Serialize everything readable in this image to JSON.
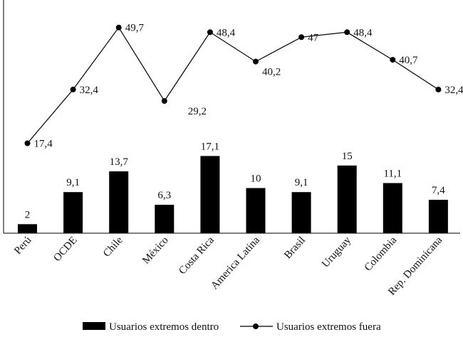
{
  "chart_data": {
    "type": "bar+line",
    "title": "",
    "xlabel": "",
    "ylabel": "",
    "categories": [
      "Perú",
      "OCDE",
      "Chile",
      "México",
      "Costa Rica",
      "America Latina",
      "Brasil",
      "Uruguay",
      "Colombia",
      "Rep. Dominicana"
    ],
    "series": [
      {
        "name": "Usuarios extremos dentro",
        "kind": "bar",
        "values": [
          2,
          9.1,
          13.7,
          6.3,
          17.1,
          10,
          9.1,
          15,
          11.1,
          7.4
        ],
        "labels": [
          "2",
          "9,1",
          "13,7",
          "6,3",
          "17,1",
          "10",
          "9,1",
          "15",
          "11,1",
          "7,4"
        ]
      },
      {
        "name": "Usuarios extremos fuera",
        "kind": "line",
        "values": [
          17.4,
          32.4,
          49.7,
          29.2,
          48.4,
          40.2,
          47,
          48.4,
          40.7,
          32.4
        ],
        "labels": [
          "17,4",
          "32,4",
          "49,7",
          "29,2",
          "48,4",
          "40,2",
          "47",
          "48,4",
          "40,7",
          "32,4"
        ]
      }
    ],
    "ylim": [
      0,
      53
    ],
    "grid": false,
    "legend_position": "bottom",
    "colors": {
      "bar": "#000000",
      "line": "#000000",
      "text": "#111111"
    }
  }
}
